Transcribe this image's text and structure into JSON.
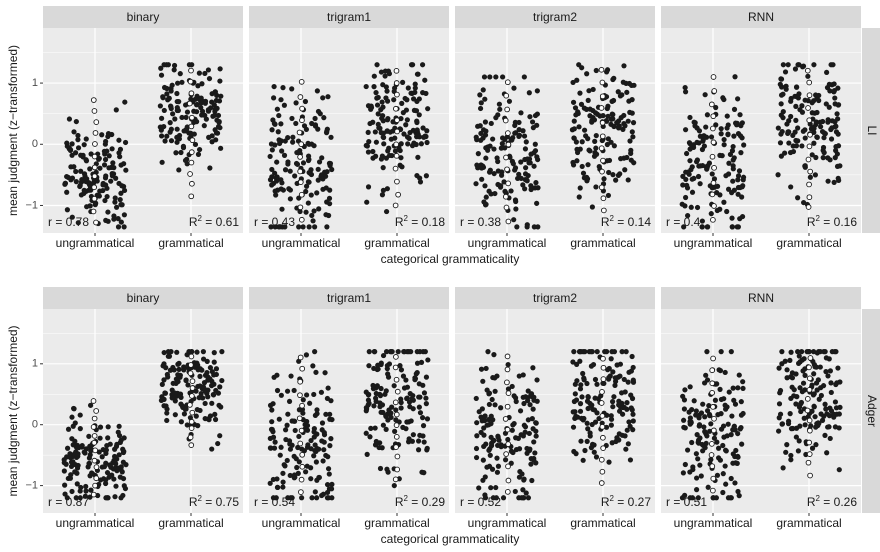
{
  "chart_data": {
    "type": "scatter",
    "xlabel": "categorical grammaticality",
    "ylabel": "mean judgment (z−transformed)",
    "categories": [
      "ungrammatical",
      "grammatical"
    ],
    "ylim": [
      -1.45,
      1.9
    ],
    "yticks": [
      "1",
      "0",
      "−1"
    ],
    "ytick_values": [
      1,
      0,
      -1
    ],
    "grid": true,
    "columns": [
      "binary",
      "trigram1",
      "trigram2",
      "RNN"
    ],
    "rows": [
      "LI",
      "Adger"
    ],
    "r2_label": "R",
    "panels": [
      {
        "row": "LI",
        "model": "binary",
        "r": "r = 0.78",
        "r2": " = 0.61",
        "series": [
          {
            "category": "ungrammatical",
            "y_min": -1.35,
            "y_max": 0.8,
            "center": -0.5,
            "spread": 0.45,
            "n": 150
          },
          {
            "category": "grammatical",
            "y_min": -0.95,
            "y_max": 1.3,
            "center": 0.55,
            "spread": 0.4,
            "n": 150
          }
        ]
      },
      {
        "row": "LI",
        "model": "trigram1",
        "r": "r = 0.43",
        "r2": " = 0.18",
        "series": [
          {
            "category": "ungrammatical",
            "y_min": -1.35,
            "y_max": 1.1,
            "center": -0.3,
            "spread": 0.6,
            "n": 150
          },
          {
            "category": "grammatical",
            "y_min": -1.1,
            "y_max": 1.3,
            "center": 0.3,
            "spread": 0.55,
            "n": 150
          }
        ]
      },
      {
        "row": "LI",
        "model": "trigram2",
        "r": "r = 0.38",
        "r2": " = 0.14",
        "series": [
          {
            "category": "ungrammatical",
            "y_min": -1.35,
            "y_max": 1.1,
            "center": -0.3,
            "spread": 0.6,
            "n": 150
          },
          {
            "category": "grammatical",
            "y_min": -1.2,
            "y_max": 1.3,
            "center": 0.25,
            "spread": 0.6,
            "n": 150
          }
        ]
      },
      {
        "row": "LI",
        "model": "RNN",
        "r": "r = 0.4",
        "r2": " = 0.16",
        "series": [
          {
            "category": "ungrammatical",
            "y_min": -1.35,
            "y_max": 1.2,
            "center": -0.3,
            "spread": 0.6,
            "n": 150
          },
          {
            "category": "grammatical",
            "y_min": -1.15,
            "y_max": 1.3,
            "center": 0.35,
            "spread": 0.55,
            "n": 150
          }
        ]
      },
      {
        "row": "Adger",
        "model": "binary",
        "r": "r = 0.87",
        "r2": " = 0.75",
        "series": [
          {
            "category": "ungrammatical",
            "y_min": -1.2,
            "y_max": 0.45,
            "center": -0.6,
            "spread": 0.35,
            "n": 150
          },
          {
            "category": "grammatical",
            "y_min": -0.4,
            "y_max": 1.2,
            "center": 0.6,
            "spread": 0.35,
            "n": 150
          }
        ]
      },
      {
        "row": "Adger",
        "model": "trigram1",
        "r": "r = 0.54",
        "r2": " = 0.29",
        "series": [
          {
            "category": "ungrammatical",
            "y_min": -1.2,
            "y_max": 1.2,
            "center": -0.2,
            "spread": 0.6,
            "n": 150
          },
          {
            "category": "grammatical",
            "y_min": -1.0,
            "y_max": 1.2,
            "center": 0.45,
            "spread": 0.55,
            "n": 150
          }
        ]
      },
      {
        "row": "Adger",
        "model": "trigram2",
        "r": "r = 0.52",
        "r2": " = 0.27",
        "series": [
          {
            "category": "ungrammatical",
            "y_min": -1.2,
            "y_max": 1.2,
            "center": -0.2,
            "spread": 0.6,
            "n": 150
          },
          {
            "category": "grammatical",
            "y_min": -1.05,
            "y_max": 1.2,
            "center": 0.45,
            "spread": 0.55,
            "n": 150
          }
        ]
      },
      {
        "row": "Adger",
        "model": "RNN",
        "r": "r = 0.51",
        "r2": " = 0.26",
        "series": [
          {
            "category": "ungrammatical",
            "y_min": -1.2,
            "y_max": 1.2,
            "center": -0.2,
            "spread": 0.6,
            "n": 150
          },
          {
            "category": "grammatical",
            "y_min": -0.9,
            "y_max": 1.2,
            "center": 0.45,
            "spread": 0.55,
            "n": 150
          }
        ]
      }
    ],
    "colors": {
      "point_fill": "#1a1a1a",
      "open_point_stroke": "#1a1a1a",
      "panel_bg": "#ebebeb",
      "strip_bg": "#d9d9d9",
      "grid": "#ffffff"
    }
  }
}
